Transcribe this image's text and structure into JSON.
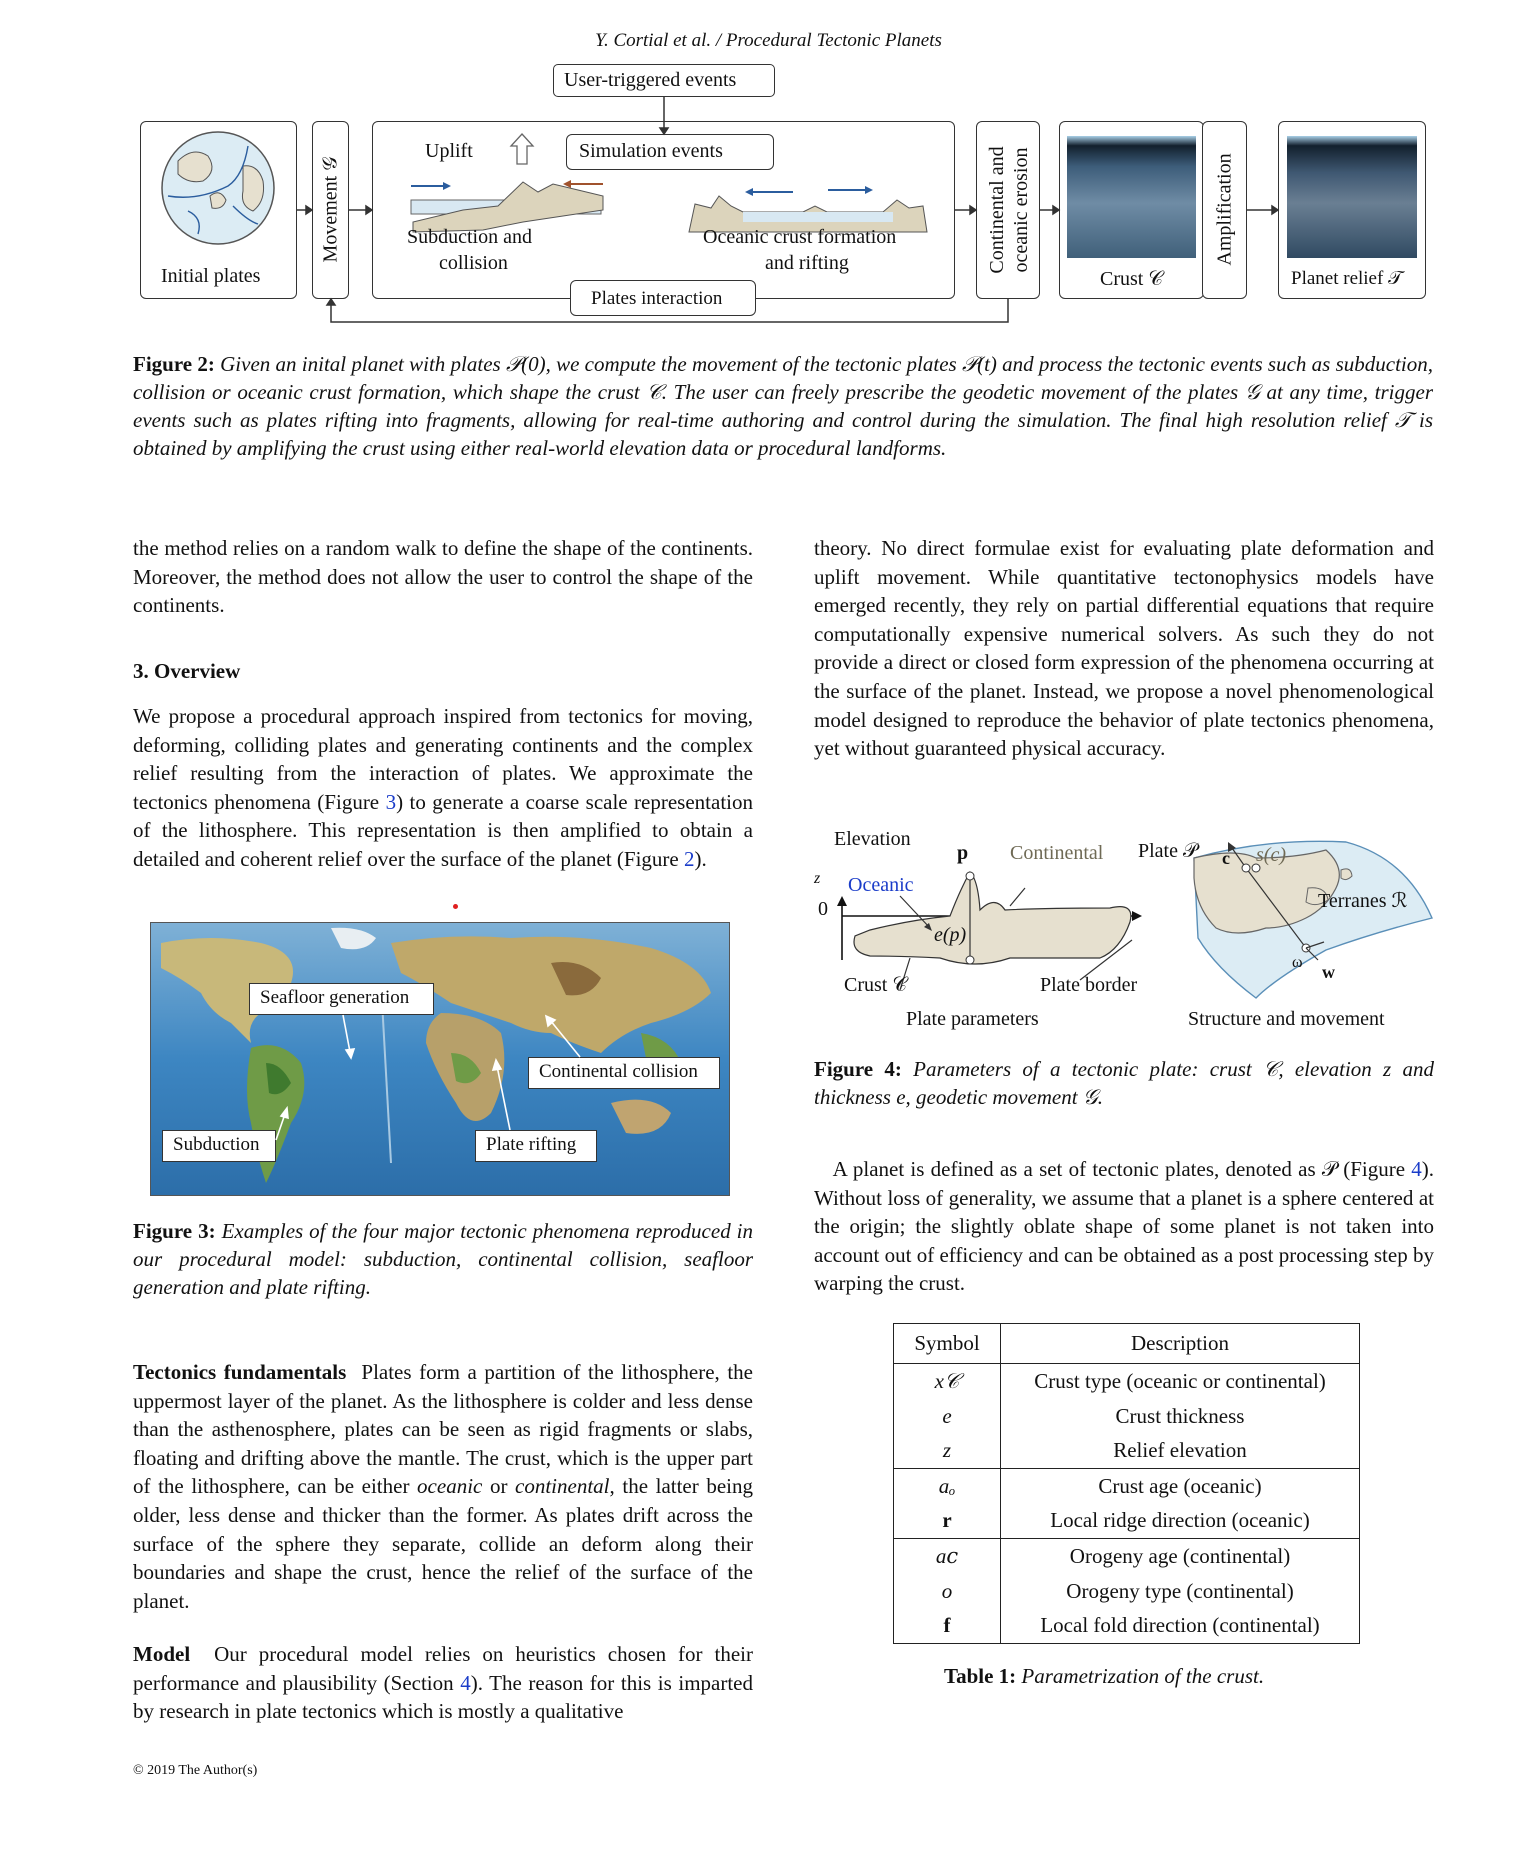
{
  "header": "Y. Cortial et al. / Procedural Tectonic Planets",
  "fig2": {
    "user_triggered": "User-triggered events",
    "simulation_events": "Simulation events",
    "uplift": "Uplift",
    "initial_plates": "Initial plates",
    "movement": "Movement 𝒢",
    "subduction_line1": "Subduction and",
    "subduction_line2": "collision",
    "oceanic_line1": "Oceanic crust formation",
    "oceanic_line2": "and rifting",
    "plates_interaction": "Plates interaction",
    "erosion": "Continental and oceanic erosion",
    "crust": "Crust 𝒞",
    "amplification": "Amplification",
    "planet_relief": "Planet relief 𝒯",
    "caption_label": "Figure 2:",
    "caption_text": "Given an inital planet with plates 𝒫(0), we compute the movement of the tectonic plates 𝒫(t) and process the tectonic events such as subduction, collision or oceanic crust formation, which shape the crust 𝒞. The user can freely prescribe the geodetic movement of the plates 𝒢 at any time, trigger events such as plates rifting into fragments, allowing for real-time authoring and control during the simulation. The final high resolution relief 𝒯 is obtained by amplifying the crust using either real-world elevation data or procedural landforms."
  },
  "left": {
    "para1": "the method relies on a random walk to define the shape of the continents. Moreover, the method does not allow the user to control the shape of the continents.",
    "section": "3. Overview",
    "para2_a": "We propose a procedural approach inspired from tectonics for moving, deforming, colliding plates and generating continents and the complex relief resulting from the interaction of plates. We approximate the tectonics phenomena (Figure ",
    "para2_ref1": "3",
    "para2_b": ") to generate a coarse scale representation of the lithosphere. This representation is then amplified to obtain a detailed and coherent relief over the surface of the planet (Figure ",
    "para2_ref2": "2",
    "para2_c": ").",
    "fig3_labels": {
      "seafloor": "Seafloor generation",
      "collision": "Continental collision",
      "subduction": "Subduction",
      "rifting": "Plate rifting"
    },
    "fig3_caption_label": "Figure 3:",
    "fig3_caption_text": "Examples of the four major tectonic phenomena reproduced in our procedural model: subduction, continental collision, seafloor generation and plate rifting.",
    "tect_title": "Tectonics fundamentals",
    "tect_a": "Plates form a partition of the lithosphere, the uppermost layer of the planet. As the lithosphere is colder and less dense than the asthenosphere, plates can be seen as rigid fragments or slabs, floating and drifting above the mantle. The crust, which is the upper part of the lithosphere, can be either ",
    "tect_oceanic": "oceanic",
    "tect_or": " or ",
    "tect_continental": "continental",
    "tect_b": ", the latter being older, less dense and thicker than the former. As plates drift across the surface of the sphere they separate, collide an deform along their boundaries and shape the crust, hence the relief of the surface of the planet.",
    "model_title": "Model",
    "model_a": "Our procedural model relies on heuristics chosen for their performance and plausibility (Section ",
    "model_ref": "4",
    "model_b": "). The reason for this is imparted by research in plate tectonics which is mostly a qualitative"
  },
  "right": {
    "para1": "theory. No direct formulae exist for evaluating plate deformation and uplift movement. While quantitative tectonophysics models have emerged recently, they rely on partial differential equations that require computationally expensive numerical solvers. As such they do not provide a direct or closed form expression of the phenomena occurring at the surface of the planet. Instead, we propose a novel phenomenological model designed to reproduce the behavior of plate tectonics phenomena, yet without guaranteed physical accuracy.",
    "fig4": {
      "elevation": "Elevation",
      "p": "p",
      "continental": "Continental",
      "oceanic": "Oceanic",
      "z": "z",
      "zero": "0",
      "ep": "e(p)",
      "crust": "Crust 𝒞",
      "plate_border": "Plate border",
      "plate_parameters": "Plate parameters",
      "plate": "Plate 𝒫",
      "c": "c",
      "sc": "s(c)",
      "terranes": "Terranes ℛ",
      "omega": "ω",
      "w": "w",
      "structure": "Structure and movement",
      "caption_label": "Figure 4:",
      "caption_text": "Parameters of a tectonic plate: crust 𝒞, elevation z and thickness e, geodetic movement 𝒢."
    },
    "para2_a": "A planet is defined as a set of tectonic plates, denoted as 𝒫 (Figure ",
    "para2_ref": "4",
    "para2_b": "). Without loss of generality, we assume that a planet is a sphere centered at the origin; the slightly oblate shape of some planet is not taken into account out of efficiency and can be obtained as a post processing step by warping the crust.",
    "table": {
      "head_symbol": "Symbol",
      "head_desc": "Description",
      "groups": [
        [
          [
            "x𝒞",
            "Crust type (oceanic or continental)"
          ],
          [
            "e",
            "Crust thickness"
          ],
          [
            "z",
            "Relief elevation"
          ]
        ],
        [
          [
            "aₒ",
            "Crust age (oceanic)"
          ],
          [
            "r",
            "Local ridge direction (oceanic)"
          ]
        ],
        [
          [
            "a𝑐",
            "Orogeny age (continental)"
          ],
          [
            "o",
            "Orogeny type (continental)"
          ],
          [
            "f",
            "Local fold direction (continental)"
          ]
        ]
      ],
      "caption_label": "Table 1:",
      "caption_text": "Parametrization of the crust."
    }
  },
  "footer": "© 2019 The Author(s)"
}
